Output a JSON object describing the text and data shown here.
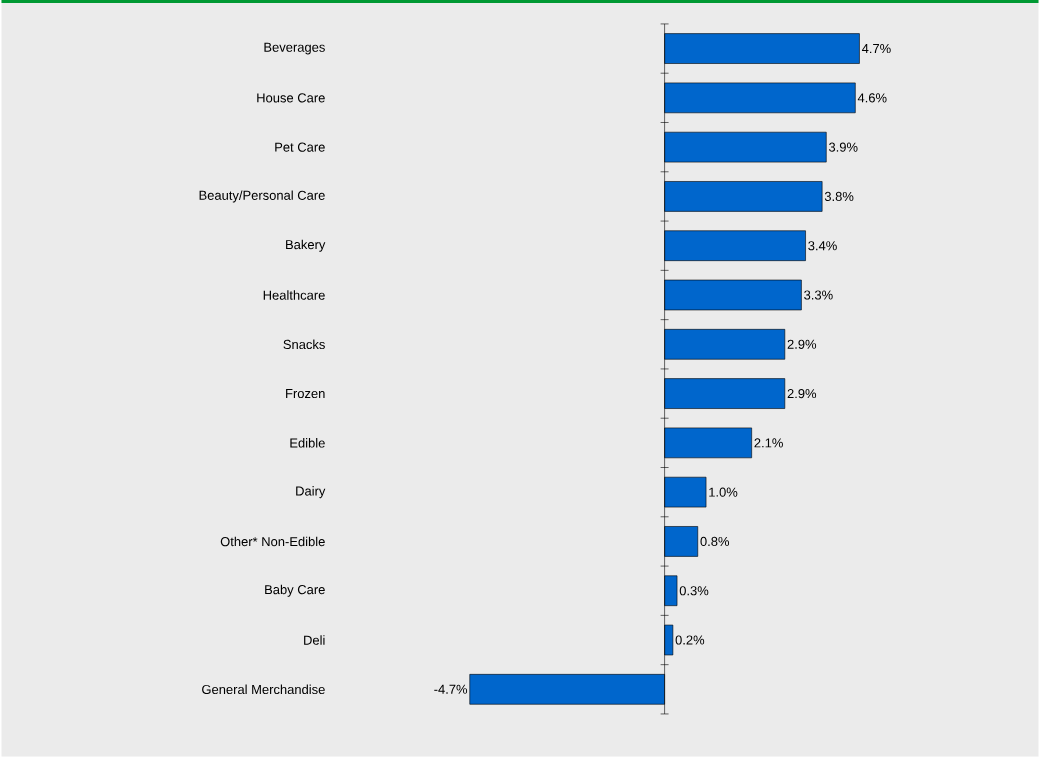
{
  "chart_data": {
    "type": "bar",
    "orientation": "horizontal",
    "categories": [
      "Beverages",
      "House Care",
      "Pet Care",
      "Beauty/Personal Care",
      "Bakery",
      "Healthcare",
      "Snacks",
      "Frozen",
      "Edible",
      "Dairy",
      "Other* Non-Edible",
      "Baby Care",
      "Deli",
      "General Merchandise"
    ],
    "values": [
      4.7,
      4.6,
      3.9,
      3.8,
      3.4,
      3.3,
      2.9,
      2.9,
      2.1,
      1.0,
      0.8,
      0.3,
      0.2,
      -4.7
    ],
    "value_labels": [
      "4.7%",
      "4.6%",
      "3.9%",
      "3.8%",
      "3.4%",
      "3.3%",
      "2.9%",
      "2.9%",
      "2.1%",
      "1.0%",
      "0.8%",
      "0.3%",
      "0.2%",
      "-4.7%"
    ],
    "color": "#0066cc"
  }
}
